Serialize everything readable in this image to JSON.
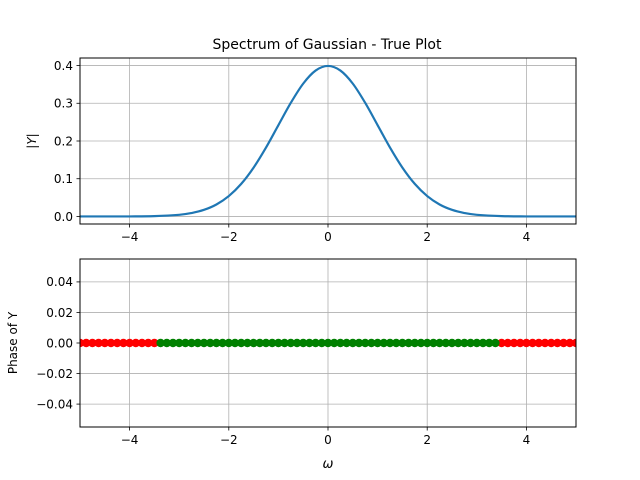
{
  "chart_data": [
    {
      "type": "line",
      "title": "Spectrum of Gaussian - True Plot",
      "xlabel": "",
      "ylabel": "|Y|",
      "xlim": [
        -5,
        5
      ],
      "ylim": [
        -0.02,
        0.42
      ],
      "xticks": [
        -4,
        -2,
        0,
        2,
        4
      ],
      "xtick_labels": [
        "−4",
        "−2",
        "0",
        "2",
        "4"
      ],
      "yticks": [
        0.0,
        0.1,
        0.2,
        0.3,
        0.4
      ],
      "ytick_labels": [
        "0.0",
        "0.1",
        "0.2",
        "0.3",
        "0.4"
      ],
      "grid": true,
      "series": [
        {
          "color": "#1f77b4",
          "x": [
            -5,
            -4.5,
            -4,
            -3.5,
            -3,
            -2.75,
            -2.5,
            -2.25,
            -2,
            -1.75,
            -1.5,
            -1.25,
            -1,
            -0.75,
            -0.5,
            -0.25,
            0,
            0.25,
            0.5,
            0.75,
            1,
            1.25,
            1.5,
            1.75,
            2,
            2.25,
            2.5,
            2.75,
            3,
            3.5,
            4,
            4.5,
            5
          ],
          "values": [
            0.0,
            0.0,
            0.0001,
            0.0009,
            0.0044,
            0.0091,
            0.0175,
            0.0317,
            0.054,
            0.0863,
            0.1295,
            0.1826,
            0.242,
            0.3011,
            0.3521,
            0.3867,
            0.3989,
            0.3867,
            0.3521,
            0.3011,
            0.242,
            0.1826,
            0.1295,
            0.0863,
            0.054,
            0.0317,
            0.0175,
            0.0091,
            0.0044,
            0.0009,
            0.0001,
            0.0,
            0.0
          ]
        }
      ]
    },
    {
      "type": "scatter",
      "title": "",
      "xlabel": "ω",
      "ylabel": "Phase of Y",
      "xlim": [
        -5,
        5
      ],
      "ylim": [
        -0.055,
        0.055
      ],
      "xticks": [
        -4,
        -2,
        0,
        2,
        4
      ],
      "xtick_labels": [
        "−4",
        "−2",
        "0",
        "2",
        "4"
      ],
      "yticks": [
        -0.04,
        -0.02,
        0.0,
        0.02,
        0.04
      ],
      "ytick_labels": [
        "−0.04",
        "−0.02",
        "0.00",
        "0.02",
        "0.04"
      ],
      "grid": true,
      "series": [
        {
          "color": "#ff0000",
          "x": [
            -5.0,
            -4.875,
            -4.75,
            -4.625,
            -4.5,
            -4.375,
            -4.25,
            -4.125,
            -4.0,
            -3.875,
            -3.75,
            -3.625,
            -3.5,
            3.5,
            3.625,
            3.75,
            3.875,
            4.0,
            4.125,
            4.25,
            4.375,
            4.5,
            4.625,
            4.75,
            4.875,
            5.0
          ],
          "values": [
            0,
            0,
            0,
            0,
            0,
            0,
            0,
            0,
            0,
            0,
            0,
            0,
            0,
            0,
            0,
            0,
            0,
            0,
            0,
            0,
            0,
            0,
            0,
            0,
            0,
            0
          ]
        },
        {
          "color": "#008000",
          "x": [
            -3.375,
            -3.25,
            -3.125,
            -3.0,
            -2.875,
            -2.75,
            -2.625,
            -2.5,
            -2.375,
            -2.25,
            -2.125,
            -2.0,
            -1.875,
            -1.75,
            -1.625,
            -1.5,
            -1.375,
            -1.25,
            -1.125,
            -1.0,
            -0.875,
            -0.75,
            -0.625,
            -0.5,
            -0.375,
            -0.25,
            -0.125,
            0.0,
            0.125,
            0.25,
            0.375,
            0.5,
            0.625,
            0.75,
            0.875,
            1.0,
            1.125,
            1.25,
            1.375,
            1.5,
            1.625,
            1.75,
            1.875,
            2.0,
            2.125,
            2.25,
            2.375,
            2.5,
            2.625,
            2.75,
            2.875,
            3.0,
            3.125,
            3.25,
            3.375
          ],
          "values": [
            0,
            0,
            0,
            0,
            0,
            0,
            0,
            0,
            0,
            0,
            0,
            0,
            0,
            0,
            0,
            0,
            0,
            0,
            0,
            0,
            0,
            0,
            0,
            0,
            0,
            0,
            0,
            0,
            0,
            0,
            0,
            0,
            0,
            0,
            0,
            0,
            0,
            0,
            0,
            0,
            0,
            0,
            0,
            0,
            0,
            0,
            0,
            0,
            0,
            0,
            0,
            0,
            0,
            0,
            0
          ]
        }
      ]
    }
  ]
}
